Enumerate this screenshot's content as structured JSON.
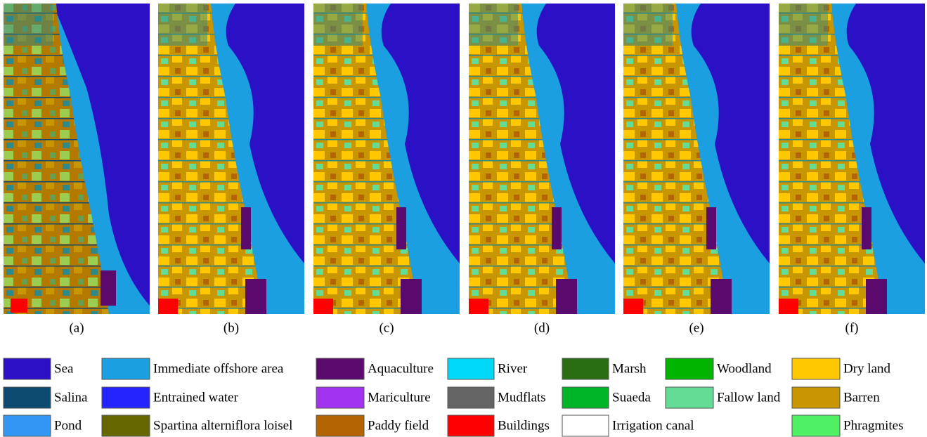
{
  "panels": [
    "(a)",
    "(b)",
    "(c)",
    "(d)",
    "(e)",
    "(f)"
  ],
  "legend": {
    "columns": [
      [
        {
          "name": "Sea",
          "color": "#2b10c6"
        },
        {
          "name": "Salina",
          "color": "#0c4a70"
        },
        {
          "name": "Pond",
          "color": "#3296f5"
        }
      ],
      [
        {
          "name": "Immediate offshore area",
          "color": "#1c9fe0"
        },
        {
          "name": "Entrained water",
          "color": "#2424ff"
        },
        {
          "name": "Spartina alterniflora loisel",
          "color": "#666600"
        }
      ],
      [
        {
          "name": "Aquaculture",
          "color": "#5a0a6c"
        },
        {
          "name": "Mariculture",
          "color": "#a032f0"
        },
        {
          "name": "Paddy field",
          "color": "#b46400"
        }
      ],
      [
        {
          "name": "River",
          "color": "#00d8f8"
        },
        {
          "name": "Mudflats",
          "color": "#646464"
        },
        {
          "name": "Buildings",
          "color": "#ff0000"
        }
      ],
      [
        {
          "name": "Marsh",
          "color": "#2a6e14"
        },
        {
          "name": "Suaeda",
          "color": "#00b428"
        },
        {
          "name": "Irrigation canal",
          "color": "#ffffff"
        }
      ],
      [
        {
          "name": "Woodland",
          "color": "#00b400"
        },
        {
          "name": "Fallow land",
          "color": "#64dc96"
        }
      ],
      [
        {
          "name": "Dry land",
          "color": "#ffc800"
        },
        {
          "name": "Barren",
          "color": "#c89600"
        },
        {
          "name": "Phragmites",
          "color": "#50f064"
        }
      ]
    ]
  }
}
